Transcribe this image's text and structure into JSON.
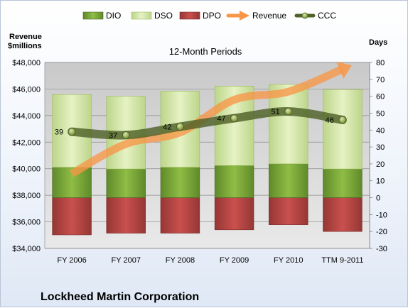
{
  "chart_data": {
    "type": "bar",
    "title": "12-Month Periods",
    "company": "Lockheed Martin Corporation",
    "left_axis_label_line1": "Revenue",
    "left_axis_label_line2": "$millions",
    "right_axis_label": "Days",
    "categories": [
      "FY 2006",
      "FY 2007",
      "FY 2008",
      "FY 2009",
      "FY 2010",
      "TTM 9-2011"
    ],
    "left_ylim": [
      34000,
      48000
    ],
    "left_ticks": [
      34000,
      36000,
      38000,
      40000,
      42000,
      44000,
      46000,
      48000
    ],
    "left_tick_labels": [
      "$34,000",
      "$36,000",
      "$38,000",
      "$40,000",
      "$42,000",
      "$44,000",
      "$46,000",
      "$48,000"
    ],
    "right_ylim": [
      -30,
      80
    ],
    "right_ticks": [
      -30,
      -20,
      -10,
      0,
      10,
      20,
      30,
      40,
      50,
      60,
      70,
      80
    ],
    "right_tick_labels": [
      "-30",
      "-20",
      "-10",
      "0",
      "10",
      "20",
      "30",
      "40",
      "50",
      "60",
      "70",
      "80"
    ],
    "grid": true,
    "legend_position": "top",
    "series": [
      {
        "name": "DIO",
        "axis": "right",
        "kind": "bar",
        "color": "#7ea53a",
        "values": [
          18,
          17,
          18,
          19,
          20,
          17
        ]
      },
      {
        "name": "DSO",
        "axis": "right",
        "kind": "bar",
        "color": "#d5e8a6",
        "values": [
          43,
          43,
          45,
          47,
          47,
          47
        ]
      },
      {
        "name": "DPO",
        "axis": "right",
        "kind": "bar",
        "color": "#c0504d",
        "values": [
          -22,
          -21,
          -21,
          -19,
          -16,
          -20
        ]
      },
      {
        "name": "Revenue",
        "axis": "left",
        "kind": "line-arrow",
        "color": "#f79646",
        "values": [
          39620,
          41862,
          42731,
          45189,
          45803,
          47500
        ]
      },
      {
        "name": "CCC",
        "axis": "right",
        "kind": "line-markers",
        "color": "#4f6228",
        "values": [
          39,
          37,
          42,
          47,
          51,
          46
        ]
      }
    ],
    "data_labels": [
      "39",
      "37",
      "42",
      "47",
      "51",
      "46"
    ]
  }
}
